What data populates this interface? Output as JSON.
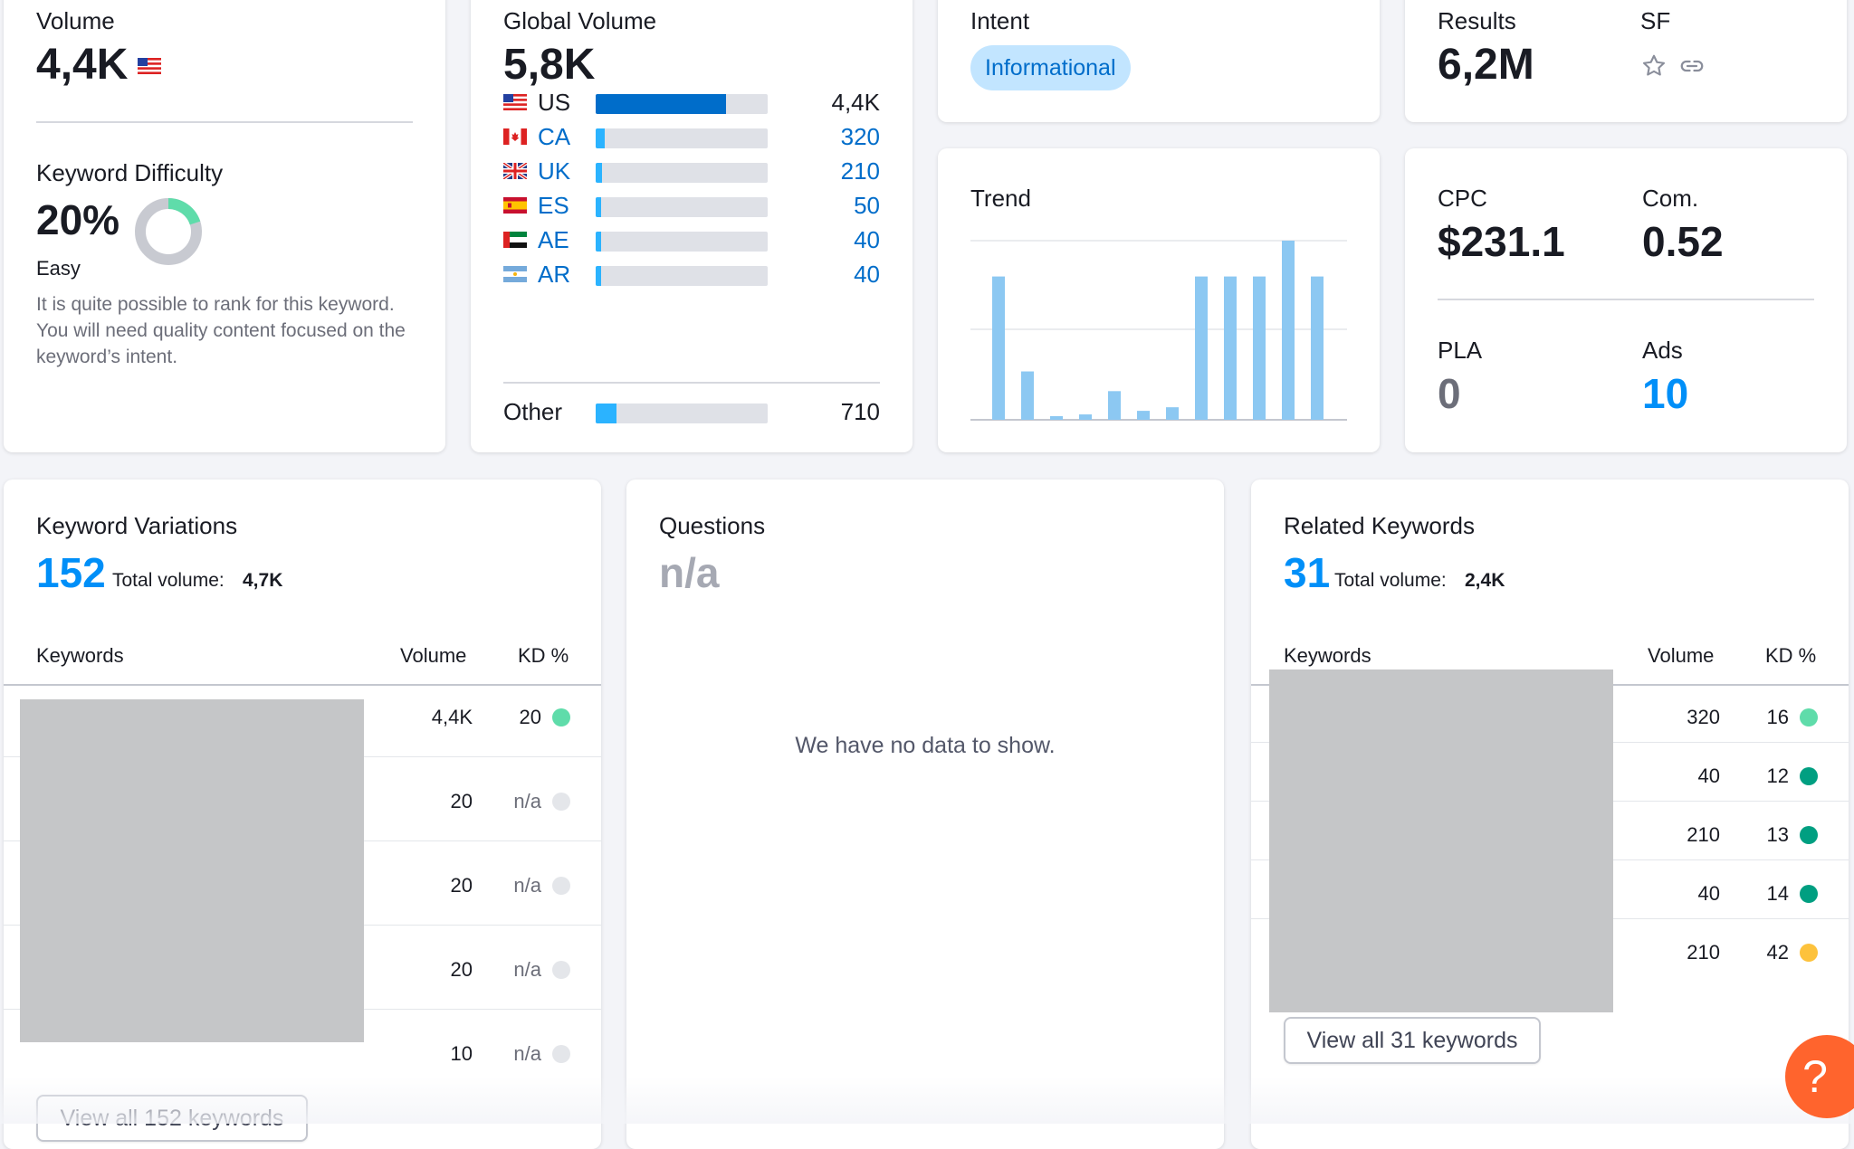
{
  "volume": {
    "label": "Volume",
    "value": "4,4K"
  },
  "keyword_difficulty": {
    "label": "Keyword Difficulty",
    "value": "20%",
    "level": "Easy",
    "percent": 20,
    "description": "It is quite possible to rank for this keyword. You will need quality content focused on the keyword’s intent.",
    "colors": {
      "fill": "#5fdcaa",
      "track": "#c8cad1"
    }
  },
  "global_volume": {
    "label": "Global Volume",
    "value": "5,8K",
    "countries": [
      {
        "code": "US",
        "value": "4,4K",
        "fraction": 0.76,
        "flag": "us-flag-icon"
      },
      {
        "code": "CA",
        "value": "320",
        "fraction": 0.055,
        "flag": "ca-flag-icon"
      },
      {
        "code": "UK",
        "value": "210",
        "fraction": 0.036,
        "flag": "uk-flag-icon"
      },
      {
        "code": "ES",
        "value": "50",
        "fraction": 0.02,
        "flag": "es-flag-icon"
      },
      {
        "code": "AE",
        "value": "40",
        "fraction": 0.02,
        "flag": "ae-flag-icon"
      },
      {
        "code": "AR",
        "value": "40",
        "fraction": 0.02,
        "flag": "ar-flag-icon"
      }
    ],
    "other": {
      "label": "Other",
      "value": "710",
      "fraction": 0.12
    },
    "colors": {
      "primary": "#006dca",
      "secondary": "#2bb3ff",
      "track": "#dfe1e7"
    }
  },
  "intent": {
    "label": "Intent",
    "badge": "Informational"
  },
  "results": {
    "label": "Results",
    "value": "6,2M"
  },
  "sf": {
    "label": "SF",
    "icons": [
      "star-icon",
      "link-icon"
    ]
  },
  "trend": {
    "label": "Trend",
    "values": [
      0.8,
      0.27,
      0.02,
      0.03,
      0.16,
      0.05,
      0.07,
      0.8,
      0.8,
      0.8,
      1.0,
      0.8
    ],
    "color": "#8cc8f2"
  },
  "cpc": {
    "label": "CPC",
    "value": "$231.1"
  },
  "com": {
    "label": "Com.",
    "value": "0.52"
  },
  "pla": {
    "label": "PLA",
    "value": "0"
  },
  "ads": {
    "label": "Ads",
    "value": "10"
  },
  "keyword_variations": {
    "label": "Keyword Variations",
    "count": "152",
    "total_label": "Total volume:",
    "total_value": "4,7K",
    "headers": {
      "keywords": "Keywords",
      "volume": "Volume",
      "kd": "KD %"
    },
    "rows": [
      {
        "volume": "4,4K",
        "kd": "20",
        "dot": "#5fdcaa"
      },
      {
        "volume": "20",
        "kd": "n/a",
        "dot": "#e4e6ea"
      },
      {
        "volume": "20",
        "kd": "n/a",
        "dot": "#e4e6ea"
      },
      {
        "volume": "20",
        "kd": "n/a",
        "dot": "#e4e6ea"
      },
      {
        "volume": "10",
        "kd": "n/a",
        "dot": "#e4e6ea"
      }
    ],
    "button": "View all 152 keywords"
  },
  "questions": {
    "label": "Questions",
    "value": "n/a",
    "empty": "We have no data to show."
  },
  "related_keywords": {
    "label": "Related Keywords",
    "count": "31",
    "total_label": "Total volume:",
    "total_value": "2,4K",
    "headers": {
      "keywords": "Keywords",
      "volume": "Volume",
      "kd": "KD %"
    },
    "rows": [
      {
        "volume": "320",
        "kd": "16",
        "dot": "#5fdcaa"
      },
      {
        "volume": "40",
        "kd": "12",
        "dot": "#009f81"
      },
      {
        "volume": "210",
        "kd": "13",
        "dot": "#009f81"
      },
      {
        "volume": "40",
        "kd": "14",
        "dot": "#009f81"
      },
      {
        "volume": "210",
        "kd": "42",
        "dot": "#fdc23c"
      }
    ],
    "button": "View all 31 keywords"
  },
  "help": {
    "label": "?",
    "color": "#ff642d"
  }
}
